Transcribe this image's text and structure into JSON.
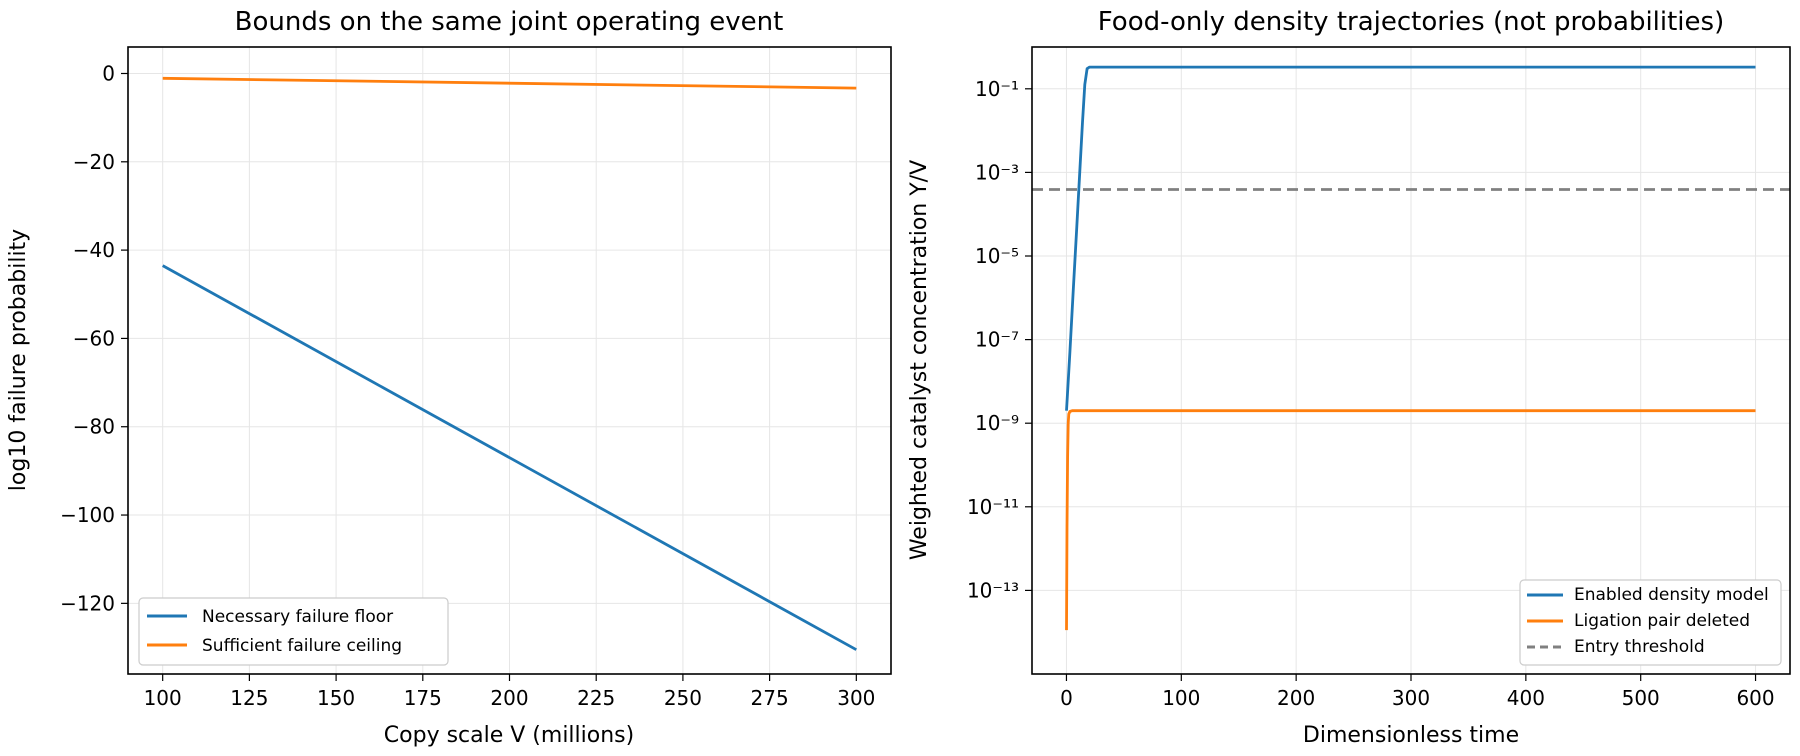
{
  "chart_data": [
    {
      "type": "line",
      "title": "Bounds on the same joint operating event",
      "xlabel": "Copy scale V (millions)",
      "ylabel": "log10 failure probability",
      "xlim": [
        90,
        310
      ],
      "ylim": [
        -136,
        6
      ],
      "xticks": [
        100,
        125,
        150,
        175,
        200,
        225,
        250,
        275,
        300
      ],
      "yticks": [
        0,
        -20,
        -40,
        -60,
        -80,
        -100,
        -120
      ],
      "xtick_labels": [
        "100",
        "125",
        "150",
        "175",
        "200",
        "225",
        "250",
        "275",
        "300"
      ],
      "ytick_labels": [
        "0",
        "−20",
        "−40",
        "−60",
        "−80",
        "−100",
        "−120"
      ],
      "grid": true,
      "legend_position": "lower-left",
      "series": [
        {
          "name": "Necessary failure floor",
          "color": "#1f77b4",
          "x": [
            100,
            300
          ],
          "y": [
            -43.5,
            -130.5
          ]
        },
        {
          "name": "Sufficient failure ceiling",
          "color": "#ff7f0e",
          "x": [
            100,
            300
          ],
          "y": [
            -1.1,
            -3.3
          ]
        }
      ]
    },
    {
      "type": "line",
      "title": "Food-only density trajectories (not probabilities)",
      "xlabel": "Dimensionless time",
      "ylabel": "Weighted catalyst concentration Y/V",
      "xlim": [
        -30,
        630
      ],
      "ylim": [
        -15.0,
        -0.0
      ],
      "y_scale": "log",
      "xticks": [
        0,
        100,
        200,
        300,
        400,
        500,
        600
      ],
      "yticks": [
        -1,
        -3,
        -5,
        -7,
        -9,
        -11,
        -13
      ],
      "xtick_labels": [
        "0",
        "100",
        "200",
        "300",
        "400",
        "500",
        "600"
      ],
      "ytick_labels": [
        "10⁻¹",
        "10⁻³",
        "10⁻⁵",
        "10⁻⁷",
        "10⁻⁹",
        "10⁻¹¹",
        "10⁻¹³"
      ],
      "grid": true,
      "legend_position": "lower-right",
      "series": [
        {
          "name": "Enabled density model",
          "color": "#1f77b4",
          "style": "solid",
          "x": [
            0,
            3,
            6,
            9,
            12,
            14,
            16,
            18,
            20,
            30,
            100,
            300,
            600
          ],
          "y": [
            -8.7,
            -7.3,
            -5.8,
            -4.3,
            -2.8,
            -1.8,
            -0.9,
            -0.52,
            -0.48,
            -0.48,
            -0.48,
            -0.48,
            -0.48
          ]
        },
        {
          "name": "Ligation pair deleted",
          "color": "#ff7f0e",
          "style": "solid",
          "x": [
            0,
            0.5,
            1,
            1.5,
            2,
            3,
            5,
            8,
            12,
            20,
            100,
            600
          ],
          "y": [
            -13.95,
            -11.5,
            -9.8,
            -9.0,
            -8.78,
            -8.72,
            -8.7,
            -8.7,
            -8.7,
            -8.7,
            -8.7,
            -8.7
          ]
        },
        {
          "name": "Entry threshold",
          "color": "#808080",
          "style": "dashed",
          "x": [
            -30,
            630
          ],
          "y": [
            -3.41,
            -3.41
          ]
        }
      ]
    }
  ]
}
